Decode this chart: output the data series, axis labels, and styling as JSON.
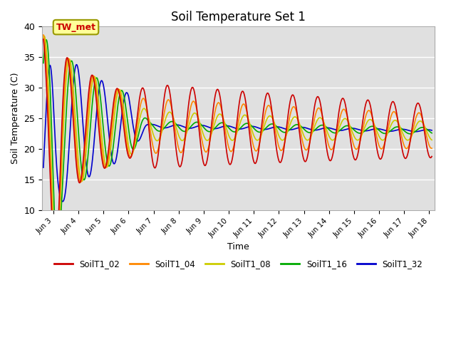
{
  "title": "Soil Temperature Set 1",
  "xlabel": "Time",
  "ylabel": "Soil Temperature (C)",
  "ylim": [
    10,
    40
  ],
  "xlim_days": [
    2.55,
    18.2
  ],
  "bg_color": "#e0e0e0",
  "fig_bg": "#ffffff",
  "annotation_text": "TW_met",
  "xtick_labels": [
    "Jun 3",
    "Jun 4",
    "Jun 5",
    "Jun 6",
    "Jun 7",
    "Jun 8",
    "Jun 9",
    "Jun 10",
    "Jun 11",
    "Jun 12",
    "Jun 13",
    "Jun 14",
    "Jun 15",
    "Jun 16",
    "Jun 17",
    "Jun 18"
  ],
  "xtick_positions": [
    3,
    4,
    5,
    6,
    7,
    8,
    9,
    10,
    11,
    12,
    13,
    14,
    15,
    16,
    17,
    18
  ],
  "series_colors": [
    "#cc0000",
    "#ff8800",
    "#cccc00",
    "#00aa00",
    "#0000cc"
  ],
  "series_names": [
    "SoilT1_02",
    "SoilT1_04",
    "SoilT1_08",
    "SoilT1_16",
    "SoilT1_32"
  ],
  "depth_amplitudes": [
    1.0,
    0.65,
    0.35,
    0.12,
    0.04
  ],
  "depth_phase_lags": [
    0.0,
    0.04,
    0.09,
    0.18,
    0.38
  ]
}
